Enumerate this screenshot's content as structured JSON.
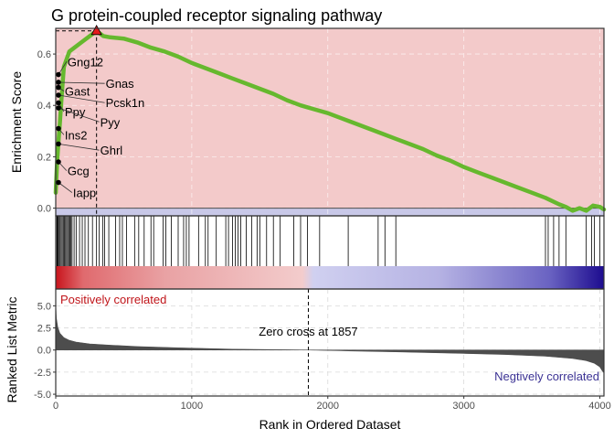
{
  "chart_data": {
    "type": "line",
    "title": "G protein-coupled receptor signaling pathway",
    "xlabel": "Rank in Ordered Dataset",
    "xlim": [
      0,
      4030
    ],
    "x_ticks": [
      0,
      1000,
      2000,
      3000,
      4000
    ],
    "x_tick_labels": [
      "0",
      "1000",
      "2000",
      "3000",
      "4000"
    ],
    "enrichment": {
      "ylabel": "Enrichment Score",
      "ylim": [
        -0.03,
        0.7
      ],
      "y_ticks": [
        0.0,
        0.2,
        0.4,
        0.6
      ],
      "y_tick_labels": [
        "0.0",
        "0.2",
        "0.4",
        "0.6"
      ],
      "line_color": "#66b82e",
      "positive_bg": "#f3caca",
      "negative_bg": "#c8c8e8",
      "peak": {
        "x": 300,
        "y": 0.69
      },
      "x": [
        0,
        5,
        10,
        20,
        30,
        40,
        50,
        60,
        80,
        100,
        150,
        200,
        250,
        300,
        350,
        400,
        500,
        600,
        700,
        800,
        900,
        1000,
        1100,
        1200,
        1300,
        1400,
        1500,
        1600,
        1700,
        1800,
        1900,
        2000,
        2100,
        2200,
        2300,
        2400,
        2500,
        2600,
        2700,
        2800,
        2900,
        3000,
        3100,
        3200,
        3300,
        3400,
        3500,
        3600,
        3700,
        3750,
        3800,
        3850,
        3900,
        3950,
        4000,
        4030
      ],
      "y": [
        0.06,
        0.12,
        0.18,
        0.26,
        0.33,
        0.41,
        0.48,
        0.55,
        0.58,
        0.61,
        0.63,
        0.65,
        0.67,
        0.69,
        0.67,
        0.665,
        0.66,
        0.645,
        0.625,
        0.61,
        0.59,
        0.565,
        0.545,
        0.525,
        0.505,
        0.485,
        0.465,
        0.445,
        0.42,
        0.4,
        0.385,
        0.37,
        0.35,
        0.33,
        0.31,
        0.29,
        0.27,
        0.25,
        0.23,
        0.205,
        0.185,
        0.16,
        0.14,
        0.12,
        0.1,
        0.08,
        0.06,
        0.04,
        0.015,
        0.005,
        -0.01,
        0.0,
        -0.01,
        0.01,
        0.005,
        -0.005
      ]
    },
    "gene_labels": [
      {
        "name": "Gng12",
        "x": 20,
        "y": 0.52,
        "label_x": 80,
        "label_y": 0.56
      },
      {
        "name": "Gnas",
        "x": 20,
        "y": 0.49,
        "label_x": 360,
        "label_y": 0.475
      },
      {
        "name": "Gast",
        "x": 20,
        "y": 0.47,
        "label_x": 60,
        "label_y": 0.445
      },
      {
        "name": "Pcsk1n",
        "x": 20,
        "y": 0.44,
        "label_x": 360,
        "label_y": 0.4
      },
      {
        "name": "Ppy",
        "x": 20,
        "y": 0.41,
        "label_x": 60,
        "label_y": 0.365
      },
      {
        "name": "Pyy",
        "x": 20,
        "y": 0.39,
        "label_x": 320,
        "label_y": 0.325
      },
      {
        "name": "Ins2",
        "x": 20,
        "y": 0.31,
        "label_x": 60,
        "label_y": 0.275
      },
      {
        "name": "Ghrl",
        "x": 20,
        "y": 0.25,
        "label_x": 320,
        "label_y": 0.215
      },
      {
        "name": "Gcg",
        "x": 20,
        "y": 0.18,
        "label_x": 80,
        "label_y": 0.135
      },
      {
        "name": "Iapp",
        "x": 20,
        "y": 0.1,
        "label_x": 120,
        "label_y": 0.05
      }
    ],
    "hits": [
      8,
      12,
      18,
      25,
      32,
      40,
      48,
      56,
      64,
      72,
      80,
      88,
      96,
      104,
      112,
      120,
      135,
      150,
      175,
      195,
      215,
      240,
      270,
      300,
      320,
      345,
      360,
      390,
      440,
      470,
      490,
      520,
      580,
      610,
      650,
      700,
      720,
      790,
      810,
      850,
      900,
      940,
      960,
      980,
      1050,
      1100,
      1120,
      1180,
      1250,
      1270,
      1300,
      1320,
      1340,
      1360,
      1400,
      1440,
      1480,
      1500,
      1550,
      1600,
      1650,
      1750,
      1800,
      1850,
      1940,
      2150,
      2370,
      2420,
      2500,
      3600,
      3620,
      3660,
      3700,
      3750,
      3900,
      3940,
      3960,
      4000
    ],
    "ranked_metric": {
      "ylabel": "Ranked List Metric",
      "ylim": [
        -5.2,
        6.9
      ],
      "y_ticks": [
        -5.0,
        -2.5,
        0.0,
        2.5,
        5.0
      ],
      "y_tick_labels": [
        "-5.0",
        "-2.5",
        "0.0",
        "2.5",
        "5.0"
      ],
      "fill_color": "#4d4d4d",
      "x": [
        0,
        5,
        15,
        30,
        60,
        100,
        150,
        250,
        400,
        600,
        900,
        1300,
        1700,
        1857,
        2100,
        2500,
        2900,
        3300,
        3600,
        3800,
        3900,
        3960,
        4000,
        4015,
        4025
      ],
      "y": [
        5.2,
        3.6,
        2.6,
        1.9,
        1.4,
        1.1,
        0.9,
        0.7,
        0.55,
        0.4,
        0.25,
        0.1,
        0.03,
        0.0,
        -0.08,
        -0.2,
        -0.35,
        -0.5,
        -0.7,
        -0.95,
        -1.2,
        -1.5,
        -1.9,
        -2.3,
        -2.5
      ],
      "zero_cross_label": "Zero cross at 1857",
      "zero_cross": 1857,
      "pos_label": "Positively correlated",
      "neg_label": "Negtively correlated",
      "pos_color": "#c0151a",
      "neg_color": "#3c3394"
    }
  }
}
